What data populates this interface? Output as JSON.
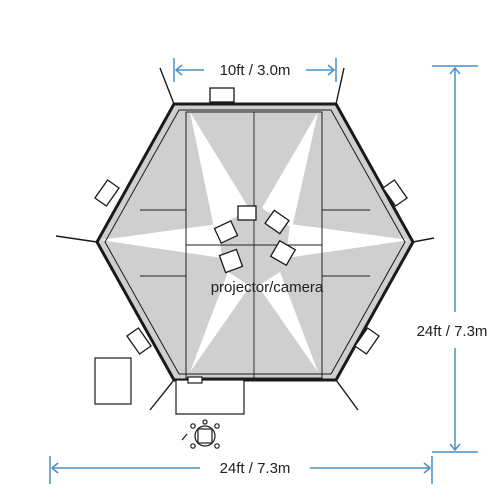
{
  "dimensions": {
    "top_width": "10ft / 3.0m",
    "overall_height": "24ft / 7.3m",
    "overall_width": "24ft / 7.3m"
  },
  "center_label": "projector/camera",
  "colors": {
    "dimension_line": "#4a8fc0",
    "structure": "#1a1a1a",
    "screen_fill": "#cfcfcf",
    "light_beam": "#ffffff"
  }
}
